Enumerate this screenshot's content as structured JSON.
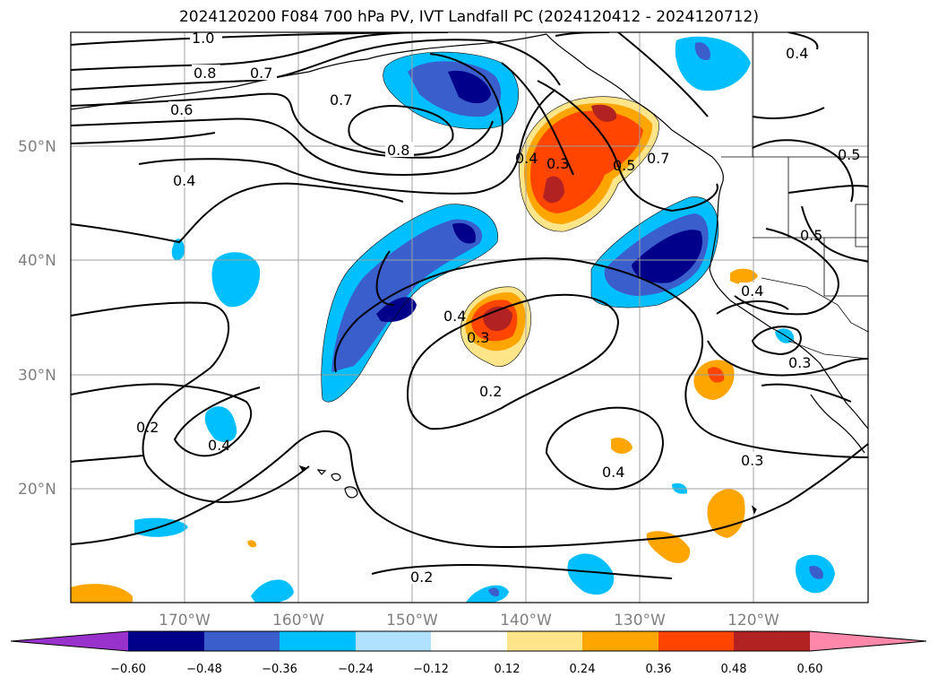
{
  "title": "2024120200 F084 700 hPa PV, IVT Landfall PC (2024120412 - 2024120712)",
  "map": {
    "lon_min": -180,
    "lon_max": -110,
    "lat_min": 10,
    "lat_max": 60,
    "lat_labels": [
      "50°N",
      "40°N",
      "30°N",
      "20°N"
    ],
    "lat_values": [
      50,
      40,
      30,
      20
    ],
    "lon_labels": [
      "170°W",
      "160°W",
      "150°W",
      "140°W",
      "130°W",
      "120°W"
    ],
    "lon_values": [
      -170,
      -160,
      -150,
      -140,
      -130,
      -120
    ],
    "contour_labels": [
      "1.0",
      "0.8",
      "0.7",
      "0.6",
      "0.7",
      "0.8",
      "0.4",
      "0.4",
      "0.3",
      "0.5",
      "0.7",
      "0.4",
      "0.5",
      "0.5",
      "0.4",
      "0.4",
      "0.3",
      "0.2",
      "0.2",
      "0.4",
      "0.4",
      "0.3",
      "0.3",
      "0.2",
      "0.4"
    ]
  },
  "colorbar": {
    "ticks": [
      "−0.60",
      "−0.48",
      "−0.36",
      "−0.24",
      "−0.12",
      "0.12",
      "0.24",
      "0.36",
      "0.48",
      "0.60"
    ],
    "colors": {
      "neg_extend": "#9932cc",
      "neg_060": "#00008b",
      "neg_048": "#3a5fcd",
      "neg_036": "#00bfff",
      "neg_024": "#b0e2ff",
      "neutral": "#ffffff",
      "pos_012": "#ffe58a",
      "pos_024": "#ffa500",
      "pos_036": "#ff4500",
      "pos_048": "#b22222",
      "pos_extend": "#ff88aa"
    }
  }
}
